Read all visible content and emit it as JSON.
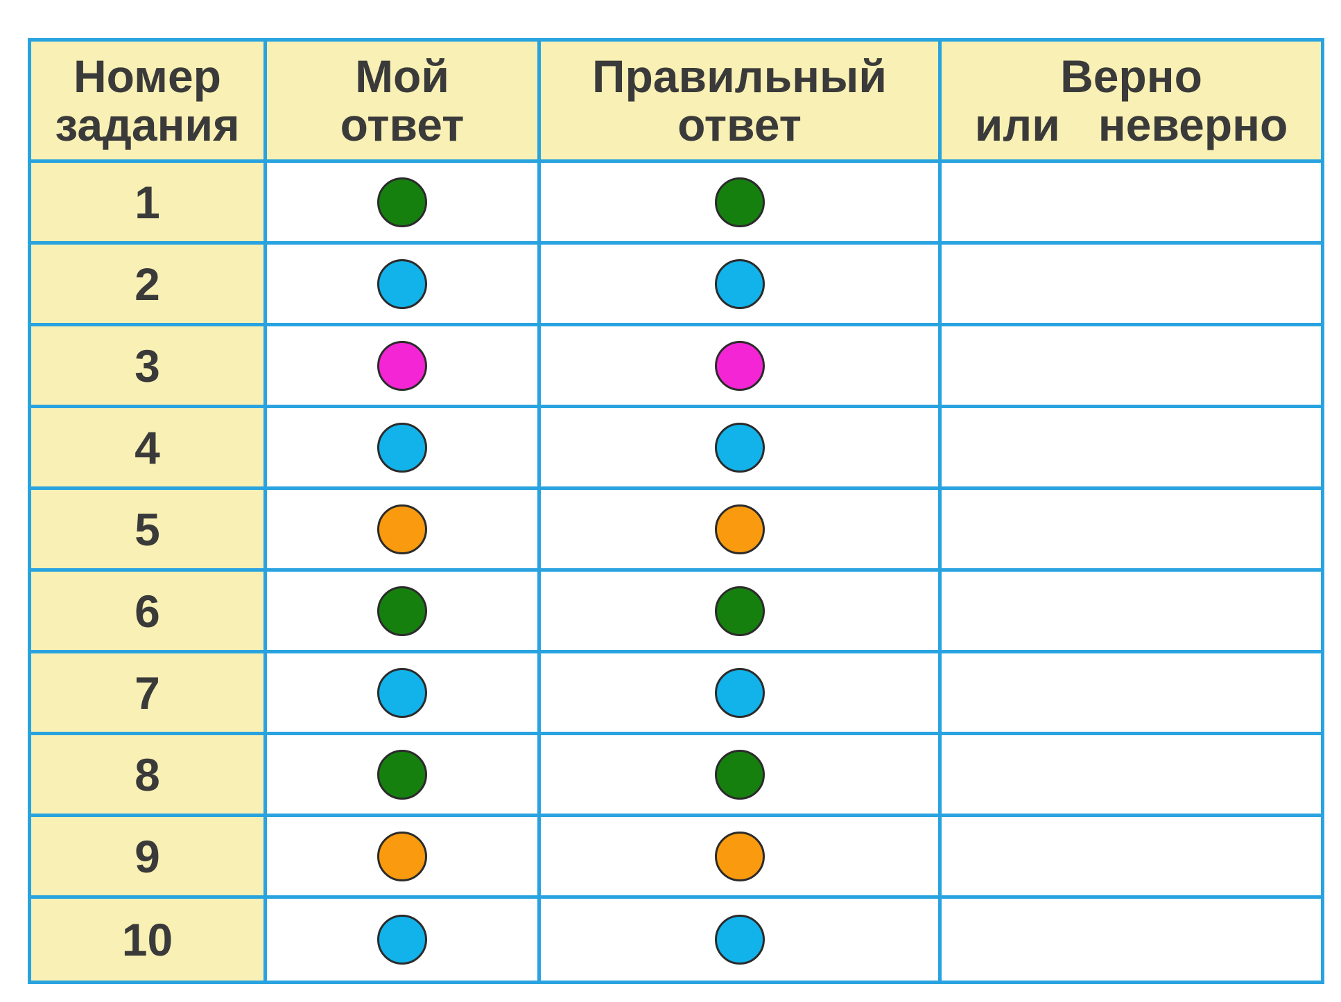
{
  "headers": [
    {
      "line1": "Номер",
      "line2": "задания"
    },
    {
      "line1": "Мой",
      "line2": "ответ"
    },
    {
      "line1": "Правильный",
      "line2": "ответ"
    },
    {
      "line1": "Верно",
      "line2": "или   неверно"
    }
  ],
  "colors": {
    "green": "#16800f",
    "blue": "#12b2ea",
    "pink": "#f425d4",
    "orange": "#f99a0f"
  },
  "rows": [
    {
      "number": "1",
      "my_answer": "green",
      "correct_answer": "green",
      "verdict": ""
    },
    {
      "number": "2",
      "my_answer": "blue",
      "correct_answer": "blue",
      "verdict": ""
    },
    {
      "number": "3",
      "my_answer": "pink",
      "correct_answer": "pink",
      "verdict": ""
    },
    {
      "number": "4",
      "my_answer": "blue",
      "correct_answer": "blue",
      "verdict": ""
    },
    {
      "number": "5",
      "my_answer": "orange",
      "correct_answer": "orange",
      "verdict": ""
    },
    {
      "number": "6",
      "my_answer": "green",
      "correct_answer": "green",
      "verdict": ""
    },
    {
      "number": "7",
      "my_answer": "blue",
      "correct_answer": "blue",
      "verdict": ""
    },
    {
      "number": "8",
      "my_answer": "green",
      "correct_answer": "green",
      "verdict": ""
    },
    {
      "number": "9",
      "my_answer": "orange",
      "correct_answer": "orange",
      "verdict": ""
    },
    {
      "number": "10",
      "my_answer": "blue",
      "correct_answer": "blue",
      "verdict": ""
    }
  ]
}
